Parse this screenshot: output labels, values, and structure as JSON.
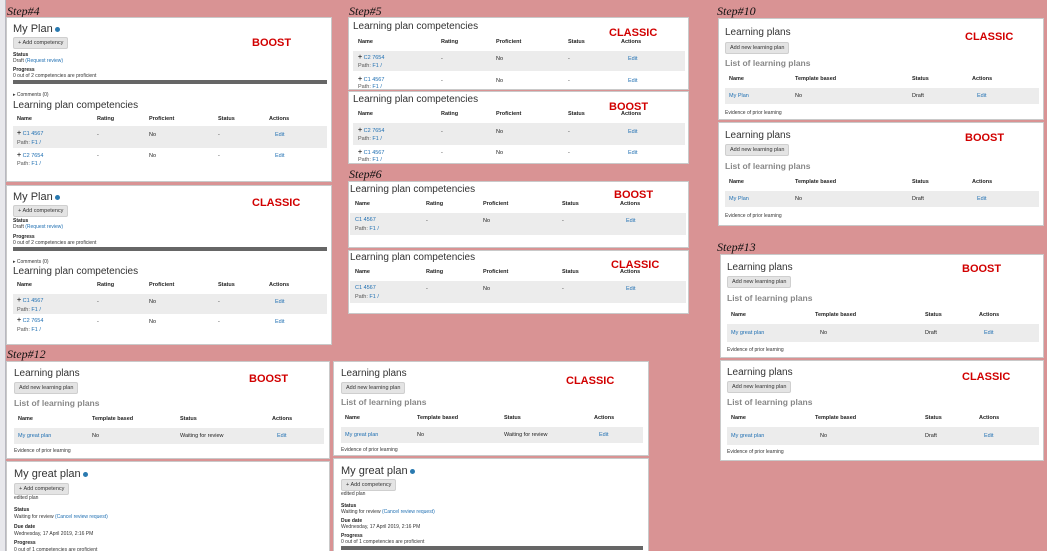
{
  "steps": {
    "s4": "Step#4",
    "s5": "Step#5",
    "s6": "Step#6",
    "s10": "Step#10",
    "s12": "Step#12",
    "s13": "Step#13"
  },
  "themes": {
    "boost": "BOOST",
    "classic": "CLASSIC"
  },
  "common": {
    "my_plan": "My Plan",
    "my_great_plan": "My great plan",
    "add_competency": "Add competency",
    "status_label": "Status",
    "progress_label": "Progress",
    "due_label": "Due date",
    "draft_request": "Draft",
    "request_review": "(Request review)",
    "progress_text": "0 out of 2 competencies are proficient",
    "progress_text_1": "0 out of 1 competencies are proficient",
    "comments": "Comments (0)",
    "lp_competencies": "Learning plan competencies",
    "learning_plans": "Learning plans",
    "add_new_plan": "Add new learning plan",
    "list_of_plans": "List of learning plans",
    "evidence": "Evidence of prior learning",
    "edited_plan": "edited plan",
    "waiting_review": "Waiting for review",
    "cancel_review": "(Cancel review request)",
    "due_date_value": "Wednesday, 17 April 2019, 2:16 PM",
    "no": "No",
    "dash": "-",
    "edit": "Edit",
    "draft": "Draft",
    "path": "Path:",
    "path_link": "F1 /",
    "plus": "+"
  },
  "comp_headers": [
    "Name",
    "Rating",
    "Proficient",
    "Status",
    "Actions"
  ],
  "plan_headers": [
    "Name",
    "Template based",
    "Status",
    "Actions"
  ],
  "competencies": {
    "c1": {
      "code": "C1",
      "name": "4567"
    },
    "c2": {
      "code": "C2",
      "name": "7654"
    }
  }
}
